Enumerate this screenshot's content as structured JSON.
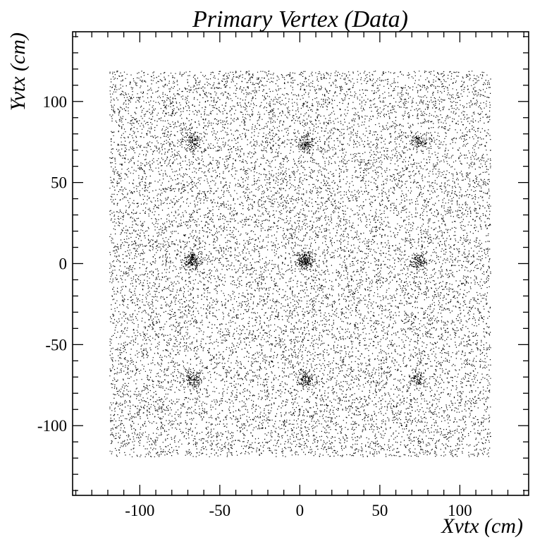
{
  "chart_data": {
    "type": "scatter",
    "title": "Primary Vertex (Data)",
    "xlabel": "Xvtx (cm)",
    "ylabel": "Yvtx (cm)",
    "xlim": [
      -142,
      143
    ],
    "ylim": [
      -143,
      143
    ],
    "xticks": [
      {
        "value": -100,
        "label": "-100"
      },
      {
        "value": -50,
        "label": "-50"
      },
      {
        "value": 0,
        "label": "0"
      },
      {
        "value": 50,
        "label": "50"
      },
      {
        "value": 100,
        "label": "100"
      }
    ],
    "yticks": [
      {
        "value": -100,
        "label": "-100"
      },
      {
        "value": -50,
        "label": "-50"
      },
      {
        "value": 0,
        "label": "0"
      },
      {
        "value": 50,
        "label": "50"
      },
      {
        "value": 100,
        "label": "100"
      }
    ],
    "grid": false,
    "legend": "none",
    "marker_color": "#000000",
    "distribution": {
      "uniform_region": {
        "x": [
          -119,
          119
        ],
        "y": [
          -119,
          119
        ]
      },
      "background_points": 16000,
      "clusters": [
        {
          "x": -67,
          "y": 75,
          "sigma": 2.6,
          "count": 110
        },
        {
          "x": 3,
          "y": 74,
          "sigma": 2.6,
          "count": 110
        },
        {
          "x": 74,
          "y": 76,
          "sigma": 2.6,
          "count": 90
        },
        {
          "x": -67,
          "y": 2,
          "sigma": 2.6,
          "count": 170
        },
        {
          "x": 3,
          "y": 2,
          "sigma": 2.6,
          "count": 220
        },
        {
          "x": 74,
          "y": 2,
          "sigma": 2.6,
          "count": 110
        },
        {
          "x": -67,
          "y": -71,
          "sigma": 2.6,
          "count": 120
        },
        {
          "x": 3,
          "y": -71,
          "sigma": 2.6,
          "count": 120
        },
        {
          "x": 74,
          "y": -71,
          "sigma": 2.6,
          "count": 90
        }
      ]
    }
  }
}
